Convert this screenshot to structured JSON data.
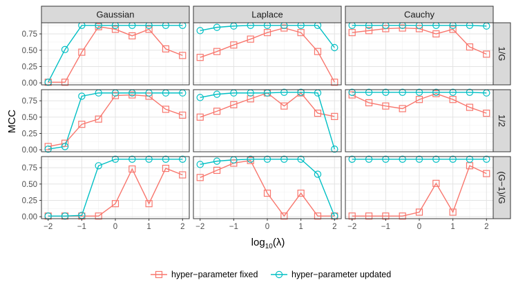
{
  "chart_data": {
    "type": "line",
    "ylabel": "MCC",
    "xlabel_base": "log",
    "xlabel_sub": "10",
    "xlabel_arg": "(λ)",
    "x": [
      -2,
      -1.5,
      -1,
      -0.5,
      0,
      0.5,
      1,
      1.5,
      2
    ],
    "xticks": [
      -2,
      -1,
      0,
      1,
      2
    ],
    "xtick_labels": [
      "−2",
      "−1",
      "0",
      "1",
      "2"
    ],
    "yticks": [
      0,
      0.25,
      0.5,
      0.75
    ],
    "ytick_labels": [
      "0.00",
      "0.25",
      "0.50",
      "0.75"
    ],
    "xlim": [
      -2.2,
      2.2
    ],
    "ylim": [
      -0.03,
      0.92
    ],
    "column_labels": [
      "Gaussian",
      "Laplace",
      "Cauchy"
    ],
    "row_labels": [
      "1/G",
      "1/2",
      "(G−1)/G"
    ],
    "legend": [
      "hyper−parameter fixed",
      "hyper−parameter updated"
    ],
    "colors": {
      "fixed": "#F8766D",
      "updated": "#00BFC4"
    },
    "panels": [
      [
        {
          "fixed": [
            0.01,
            0.01,
            0.47,
            0.86,
            0.82,
            0.72,
            0.82,
            0.52,
            0.42
          ],
          "updated": [
            0.01,
            0.51,
            0.88,
            0.88,
            0.88,
            0.88,
            0.88,
            0.88,
            0.88
          ]
        },
        {
          "fixed": [
            0.39,
            0.48,
            0.58,
            0.67,
            0.77,
            0.84,
            0.77,
            0.48,
            0.01
          ],
          "updated": [
            0.8,
            0.85,
            0.87,
            0.88,
            0.88,
            0.88,
            0.88,
            0.88,
            0.54
          ]
        },
        {
          "fixed": [
            0.77,
            0.8,
            0.83,
            0.84,
            0.83,
            0.75,
            0.82,
            0.55,
            0.44
          ],
          "updated": [
            0.88,
            0.88,
            0.88,
            0.88,
            0.88,
            0.88,
            0.88,
            0.88,
            0.87
          ]
        }
      ],
      [
        {
          "fixed": [
            0.05,
            0.1,
            0.39,
            0.47,
            0.83,
            0.84,
            0.82,
            0.62,
            0.53
          ],
          "updated": [
            0.01,
            0.05,
            0.82,
            0.87,
            0.87,
            0.87,
            0.87,
            0.87,
            0.87
          ]
        },
        {
          "fixed": [
            0.5,
            0.59,
            0.69,
            0.78,
            0.87,
            0.67,
            0.87,
            0.56,
            0.51
          ],
          "updated": [
            0.8,
            0.85,
            0.87,
            0.87,
            0.87,
            0.88,
            0.88,
            0.87,
            0.01
          ]
        },
        {
          "fixed": [
            0.84,
            0.72,
            0.67,
            0.63,
            0.77,
            0.86,
            0.77,
            0.65,
            0.56
          ],
          "updated": [
            0.88,
            0.88,
            0.88,
            0.88,
            0.88,
            0.88,
            0.88,
            0.88,
            0.87
          ]
        }
      ],
      [
        {
          "fixed": [
            0.01,
            0.01,
            0.01,
            0.01,
            0.2,
            0.73,
            0.2,
            0.74,
            0.64
          ],
          "updated": [
            0.01,
            0.01,
            0.02,
            0.78,
            0.88,
            0.88,
            0.88,
            0.88,
            0.88
          ]
        },
        {
          "fixed": [
            0.6,
            0.71,
            0.82,
            0.86,
            0.36,
            0.01,
            0.36,
            0.01,
            0.01
          ],
          "updated": [
            0.8,
            0.85,
            0.87,
            0.88,
            0.88,
            0.88,
            0.88,
            0.65,
            0.01
          ]
        },
        {
          "fixed": [
            0.01,
            0.01,
            0.01,
            0.01,
            0.07,
            0.51,
            0.07,
            0.78,
            0.66
          ],
          "updated": [
            0.88,
            0.88,
            0.88,
            0.88,
            0.88,
            0.88,
            0.88,
            0.88,
            0.88
          ]
        }
      ]
    ]
  }
}
